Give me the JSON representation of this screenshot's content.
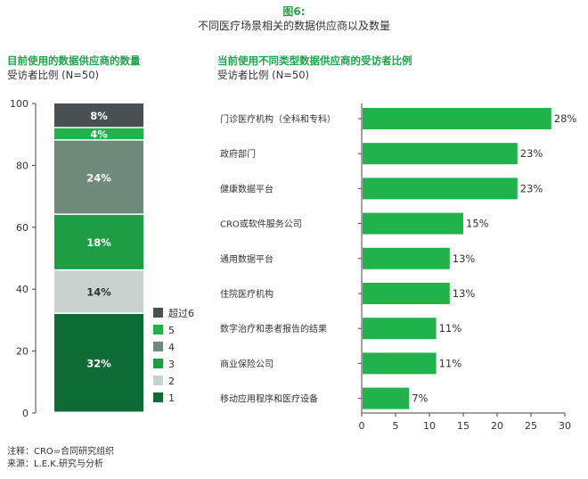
{
  "figure": {
    "label": "图6:",
    "title": "不同医疗场景相关的数据供应商以及数量"
  },
  "left_chart": {
    "title": "目前使用的数据供应商的数量",
    "subtitle": "受访者比例 (N=50)"
  },
  "right_chart": {
    "title": "当前使用不同类型数据供应商的受访者比例",
    "subtitle": "受访者比例 (N=50)"
  },
  "notes": {
    "note": "注释：CRO=合同研究组织",
    "source": "来源：L.E.K.研究与分析"
  },
  "colors": {
    "brand_green": "#1aa64a",
    "bar_green": "#22b24c"
  },
  "chart_data": [
    {
      "type": "bar",
      "stacked": true,
      "categories": [
        ""
      ],
      "ylim": [
        0,
        100
      ],
      "yticks": [
        0,
        20,
        40,
        60,
        80,
        100
      ],
      "series": [
        {
          "name": "1",
          "values": [
            32
          ],
          "label": "32%",
          "color": "#0f6b35",
          "label_color": "#ffffff"
        },
        {
          "name": "2",
          "values": [
            14
          ],
          "label": "14%",
          "color": "#c9d2cf",
          "label_color": "#333333"
        },
        {
          "name": "3",
          "values": [
            18
          ],
          "label": "18%",
          "color": "#1e9e44",
          "label_color": "#ffffff"
        },
        {
          "name": "4",
          "values": [
            24
          ],
          "label": "24%",
          "color": "#6f8a7b",
          "label_color": "#ffffff"
        },
        {
          "name": "5",
          "values": [
            4
          ],
          "label": "4%",
          "color": "#22b24c",
          "label_color": "#ffffff"
        },
        {
          "name": "超过6",
          "values": [
            8
          ],
          "label": "8%",
          "color": "#4a4f53",
          "label_color": "#ffffff"
        }
      ],
      "legend": [
        "超过6",
        "5",
        "4",
        "3",
        "2",
        "1"
      ],
      "legend_position": "right",
      "grid": false
    },
    {
      "type": "bar",
      "orientation": "horizontal",
      "categories": [
        "门诊医疗机构（全科和专科）",
        "政府部门",
        "健康数据平台",
        "CRO或软件服务公司",
        "通用数据平台",
        "住院医疗机构",
        "数字治疗和患者报告的结果",
        "商业保险公司",
        "移动应用程序和医疗设备"
      ],
      "values": [
        28,
        23,
        23,
        15,
        13,
        13,
        11,
        11,
        7
      ],
      "labels": [
        "28%",
        "23%",
        "23%",
        "15%",
        "13%",
        "13%",
        "11%",
        "11%",
        "7%"
      ],
      "xlim": [
        0,
        30
      ],
      "xticks": [
        0,
        5,
        10,
        15,
        20,
        25,
        30
      ],
      "grid": false
    }
  ]
}
